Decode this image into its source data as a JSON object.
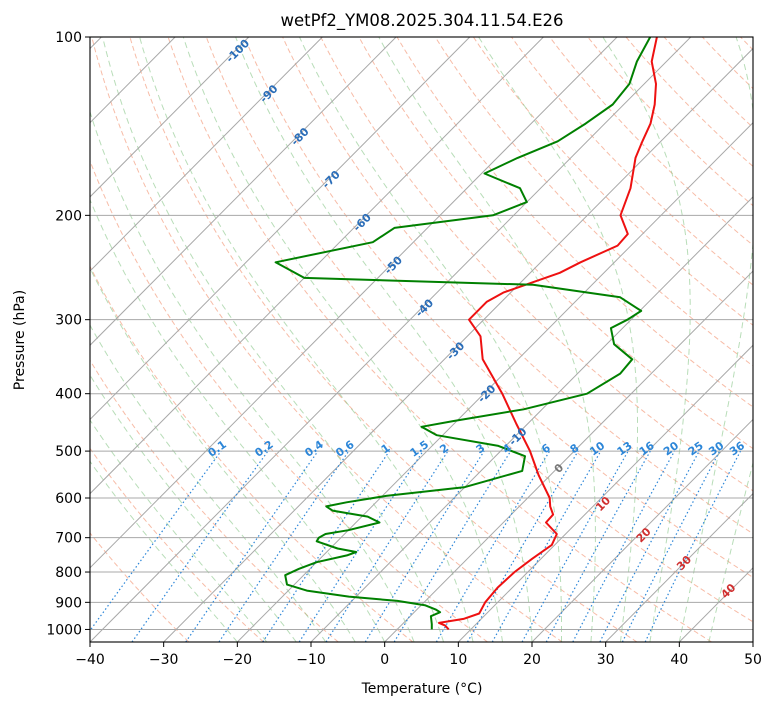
{
  "chart_data": {
    "type": "line",
    "subtype": "skew-t log-p",
    "title": "wetPf2_YM08.2025.304.11.54.E26",
    "xlabel": "Temperature (°C)",
    "ylabel": "Pressure (hPa)",
    "xlim": [
      -40,
      50
    ],
    "ylim": [
      1050,
      100
    ],
    "y_scale": "log",
    "grid": true,
    "x_ticks": [
      "−40",
      "−30",
      "−20",
      "−10",
      "0",
      "10",
      "20",
      "30",
      "40",
      "50"
    ],
    "y_ticks": [
      "100",
      "200",
      "300",
      "400",
      "500",
      "600",
      "700",
      "800",
      "900",
      "1000"
    ],
    "isotherm_labels": [
      "-100",
      "-90",
      "-80",
      "-70",
      "-60",
      "-50",
      "-40",
      "-30",
      "-20",
      "-10"
    ],
    "mixing_ratio_labels": [
      "0.1",
      "0.2",
      "0.4",
      "0.6",
      "1",
      "1.5",
      "2",
      "3",
      "4",
      "6",
      "8",
      "10",
      "13",
      "16",
      "20",
      "25",
      "30",
      "36"
    ],
    "moist_adiabat_labels": [
      "0",
      "10",
      "20",
      "30",
      "40"
    ],
    "series": [
      {
        "name": "",
        "color": "#ee1111",
        "points": [
          [
            1000,
            7.0
          ],
          [
            985,
            6.0
          ],
          [
            975,
            4.8
          ],
          [
            960,
            7.6
          ],
          [
            940,
            9.0
          ],
          [
            900,
            8.3
          ],
          [
            850,
            8.0
          ],
          [
            800,
            8.2
          ],
          [
            760,
            8.8
          ],
          [
            720,
            9.6
          ],
          [
            690,
            8.8
          ],
          [
            660,
            5.8
          ],
          [
            640,
            5.7
          ],
          [
            620,
            4.2
          ],
          [
            600,
            3.0
          ],
          [
            550,
            -1.5
          ],
          [
            500,
            -6.0
          ],
          [
            450,
            -11.5
          ],
          [
            400,
            -17.5
          ],
          [
            350,
            -24.8
          ],
          [
            320,
            -28.2
          ],
          [
            300,
            -32.0
          ],
          [
            280,
            -32.0
          ],
          [
            270,
            -31.0
          ],
          [
            250,
            -26.0
          ],
          [
            240,
            -24.6
          ],
          [
            225,
            -21.8
          ],
          [
            215,
            -22.0
          ],
          [
            200,
            -25.5
          ],
          [
            180,
            -27.8
          ],
          [
            160,
            -31.2
          ],
          [
            150,
            -32.5
          ],
          [
            140,
            -33.8
          ],
          [
            130,
            -35.8
          ],
          [
            120,
            -38.4
          ],
          [
            110,
            -42.0
          ],
          [
            100,
            -44.6
          ]
        ]
      },
      {
        "name": "",
        "color": "#008000",
        "points": [
          [
            1000,
            4.7
          ],
          [
            980,
            4.0
          ],
          [
            950,
            2.8
          ],
          [
            935,
            3.5
          ],
          [
            925,
            2.5
          ],
          [
            910,
            0.5
          ],
          [
            895,
            -3.8
          ],
          [
            880,
            -11.0
          ],
          [
            860,
            -17.5
          ],
          [
            840,
            -21.0
          ],
          [
            810,
            -22.5
          ],
          [
            790,
            -21.5
          ],
          [
            770,
            -20.0
          ],
          [
            750,
            -16.8
          ],
          [
            740,
            -16.0
          ],
          [
            730,
            -19.0
          ],
          [
            710,
            -22.8
          ],
          [
            700,
            -23.0
          ],
          [
            690,
            -22.6
          ],
          [
            680,
            -20.0
          ],
          [
            660,
            -16.8
          ],
          [
            645,
            -19.2
          ],
          [
            630,
            -24.8
          ],
          [
            620,
            -26.2
          ],
          [
            610,
            -24.0
          ],
          [
            595,
            -19.5
          ],
          [
            575,
            -10.0
          ],
          [
            540,
            -4.4
          ],
          [
            510,
            -6.0
          ],
          [
            490,
            -11.0
          ],
          [
            470,
            -20.8
          ],
          [
            455,
            -24.0
          ],
          [
            445,
            -20.5
          ],
          [
            425,
            -12.5
          ],
          [
            400,
            -6.0
          ],
          [
            370,
            -4.2
          ],
          [
            350,
            -4.5
          ],
          [
            330,
            -9.0
          ],
          [
            310,
            -11.6
          ],
          [
            300,
            -10.5
          ],
          [
            290,
            -9.8
          ],
          [
            275,
            -14.5
          ],
          [
            262,
            -28.0
          ],
          [
            255,
            -60.0
          ],
          [
            240,
            -66.0
          ],
          [
            222,
            -55.5
          ],
          [
            210,
            -54.5
          ],
          [
            200,
            -42.8
          ],
          [
            190,
            -40.0
          ],
          [
            180,
            -42.8
          ],
          [
            170,
            -49.6
          ],
          [
            160,
            -47.2
          ],
          [
            150,
            -44.0
          ],
          [
            140,
            -42.6
          ],
          [
            130,
            -41.5
          ],
          [
            120,
            -42.0
          ],
          [
            110,
            -44.0
          ],
          [
            100,
            -45.5
          ]
        ]
      }
    ]
  }
}
